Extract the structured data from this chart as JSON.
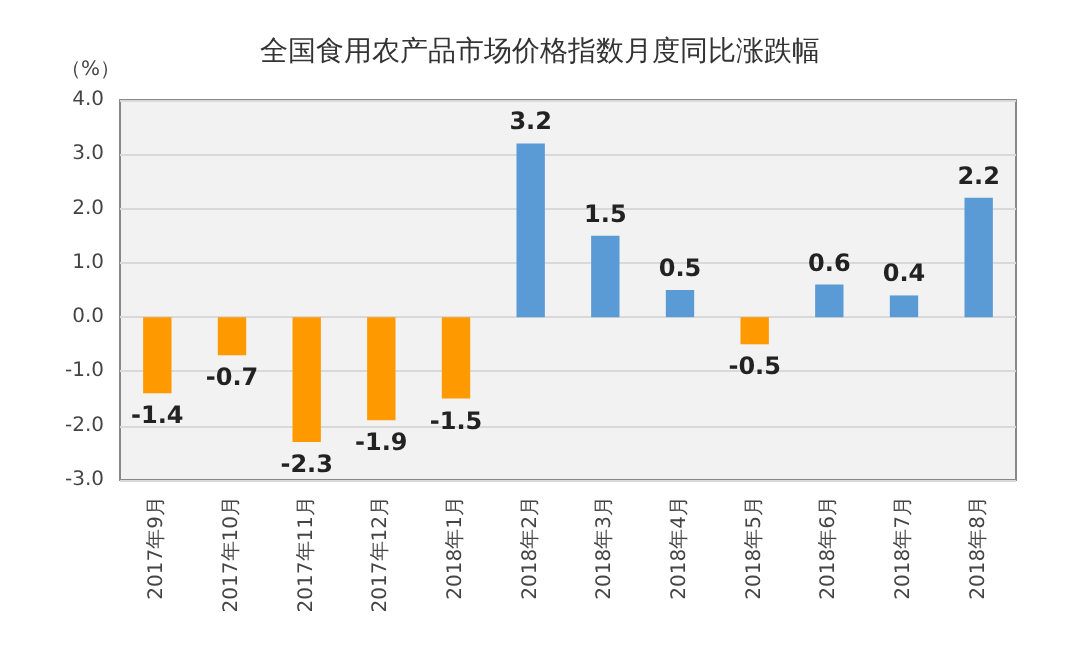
{
  "chart_data": {
    "type": "bar",
    "title": "全国食用农产品市场价格指数月度同比涨跌幅",
    "ylabel": "（%）",
    "categories": [
      "2017年9月",
      "2017年10月",
      "2017年11月",
      "2017年12月",
      "2018年1月",
      "2018年2月",
      "2018年3月",
      "2018年4月",
      "2018年5月",
      "2018年6月",
      "2018年7月",
      "2018年8月"
    ],
    "values": [
      -1.4,
      -0.7,
      -2.3,
      -1.9,
      -1.5,
      3.2,
      1.5,
      0.5,
      -0.5,
      0.6,
      0.4,
      2.2
    ],
    "colors": [
      "#ff9900",
      "#ff9900",
      "#ff9900",
      "#ff9900",
      "#ff9900",
      "#5b9bd5",
      "#5b9bd5",
      "#5b9bd5",
      "#ff9900",
      "#5b9bd5",
      "#5b9bd5",
      "#5b9bd5"
    ],
    "ylim": [
      -3,
      4
    ],
    "yticks": [
      {
        "value": -3,
        "label": "-3.0"
      },
      {
        "value": -2,
        "label": "-2.0"
      },
      {
        "value": -1,
        "label": "-1.0"
      },
      {
        "value": 0,
        "label": "0.0"
      },
      {
        "value": 1,
        "label": "1.0"
      },
      {
        "value": 2,
        "label": "2.0"
      },
      {
        "value": 3,
        "label": "3.0"
      },
      {
        "value": 4,
        "label": "4.0"
      }
    ],
    "grid": "y",
    "data_labels": true
  }
}
